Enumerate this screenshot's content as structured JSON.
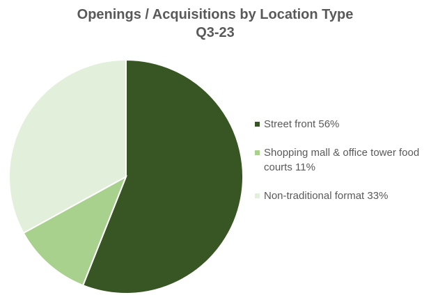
{
  "chart_data": {
    "type": "pie",
    "title": [
      "Openings / Acquisitions  by Location Type",
      "Q3-23"
    ],
    "categories": [
      "Street front",
      "Shopping mall & office tower food courts",
      "Non-traditional format"
    ],
    "values": [
      56,
      11,
      33
    ],
    "value_labels": [
      "56%",
      "11%",
      "33%"
    ],
    "colors": [
      "#375623",
      "#a9d18e",
      "#e2efda"
    ],
    "legend": "right"
  }
}
